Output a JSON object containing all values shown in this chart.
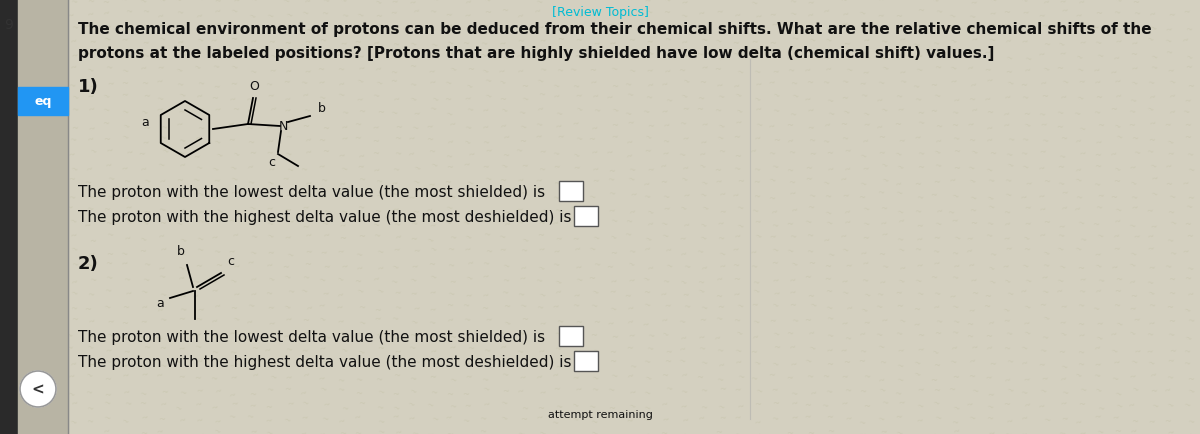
{
  "bg_color": "#ccc8b8",
  "bg_main": "#d4d0c0",
  "left_dark": "#2a2a2a",
  "left_mid": "#b8b4a4",
  "header_text": "[Review Topics]",
  "header_color": "#00bcd4",
  "label_9": "9",
  "label_eq": "eq",
  "eq_bg": "#2196F3",
  "intro_line1": "The chemical environment of protons can be deduced from their chemical shifts. What are the relative chemical shifts of the",
  "intro_line2": "protons at the labeled positions? [Protons that are highly shielded have low delta (chemical shift) values.]",
  "q1_label": "1)",
  "q1_lowest": "The proton with the lowest delta value (the most shielded) is",
  "q1_highest": "The proton with the highest delta value (the most deshielded) is",
  "q2_label": "2)",
  "q2_lowest": "The proton with the lowest delta value (the most shielded) is",
  "q2_highest": "The proton with the highest delta value (the most deshielded) is",
  "bottom_text": "attempt remaining",
  "nav_arrow": "<",
  "text_color": "#111111",
  "divider_color": "#888888"
}
